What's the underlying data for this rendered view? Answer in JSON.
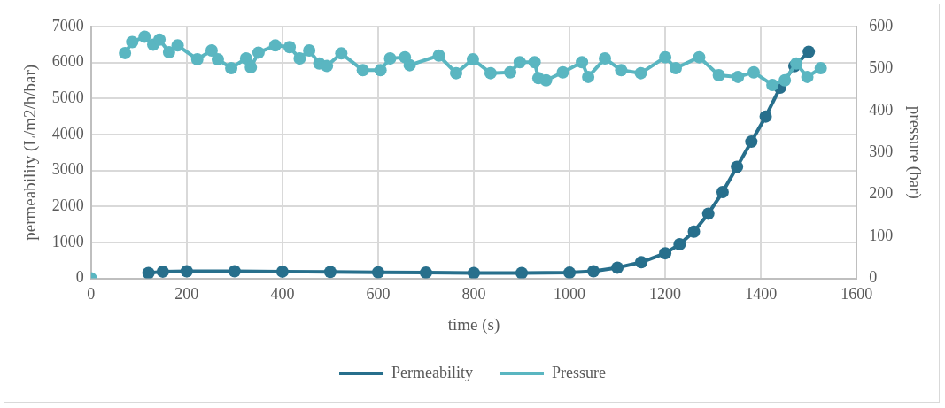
{
  "chart_data": {
    "type": "line",
    "xlabel": "time (s)",
    "ylabel": "permeability (L/m2/h/bar)",
    "y2label": "pressure (bar)",
    "xlim": [
      0,
      1600
    ],
    "xticks": [
      0,
      200,
      400,
      600,
      800,
      1000,
      1200,
      1400,
      1600
    ],
    "ylim": [
      0,
      7000
    ],
    "yticks": [
      0,
      1000,
      2000,
      3000,
      4000,
      5000,
      6000,
      7000
    ],
    "y2lim": [
      0,
      600
    ],
    "y2ticks": [
      0,
      100,
      200,
      300,
      400,
      500,
      600
    ],
    "grid": true,
    "legend": "bottom",
    "marker": "circle",
    "line_style": "solid",
    "series": [
      {
        "name": "Permeability",
        "color": "#276f8c",
        "x": [
          120,
          150,
          200,
          300,
          400,
          500,
          600,
          700,
          800,
          900,
          1000,
          1050,
          1100,
          1150,
          1200,
          1230,
          1260,
          1290,
          1320,
          1350,
          1380,
          1410,
          1440,
          1470,
          1500
        ],
        "values": [
          150,
          190,
          200,
          200,
          190,
          180,
          170,
          160,
          150,
          150,
          160,
          200,
          300,
          450,
          700,
          950,
          1300,
          1800,
          2400,
          3100,
          3800,
          4500,
          5300,
          5900,
          6300
        ]
      },
      {
        "name": "Pressure",
        "color": "#5ab6c1",
        "axis": "y2",
        "x": [
          0,
          35,
          71,
          86,
          112,
          130,
          143,
          163,
          181,
          222,
          252,
          265,
          293,
          324,
          334,
          350,
          385,
          415,
          436,
          456,
          477,
          493,
          523,
          568,
          605,
          625,
          656,
          666,
          727,
          763,
          798,
          835,
          876,
          896,
          927,
          935,
          951,
          986,
          1026,
          1039,
          1074,
          1108,
          1149,
          1200,
          1222,
          1271,
          1312,
          1352,
          1385,
          1424,
          1450,
          1474,
          1497,
          1525
        ],
        "values": [
          0,
          null,
          537,
          563,
          576,
          557,
          569,
          539,
          555,
          522,
          543,
          522,
          501,
          524,
          503,
          538,
          555,
          551,
          524,
          543,
          512,
          506,
          536,
          496,
          496,
          524,
          527,
          508,
          531,
          489,
          522,
          489,
          491,
          515,
          515,
          477,
          472,
          491,
          515,
          480,
          524,
          496,
          489,
          527,
          501,
          527,
          484,
          480,
          491,
          461,
          472,
          512,
          480,
          501
        ]
      }
    ]
  }
}
